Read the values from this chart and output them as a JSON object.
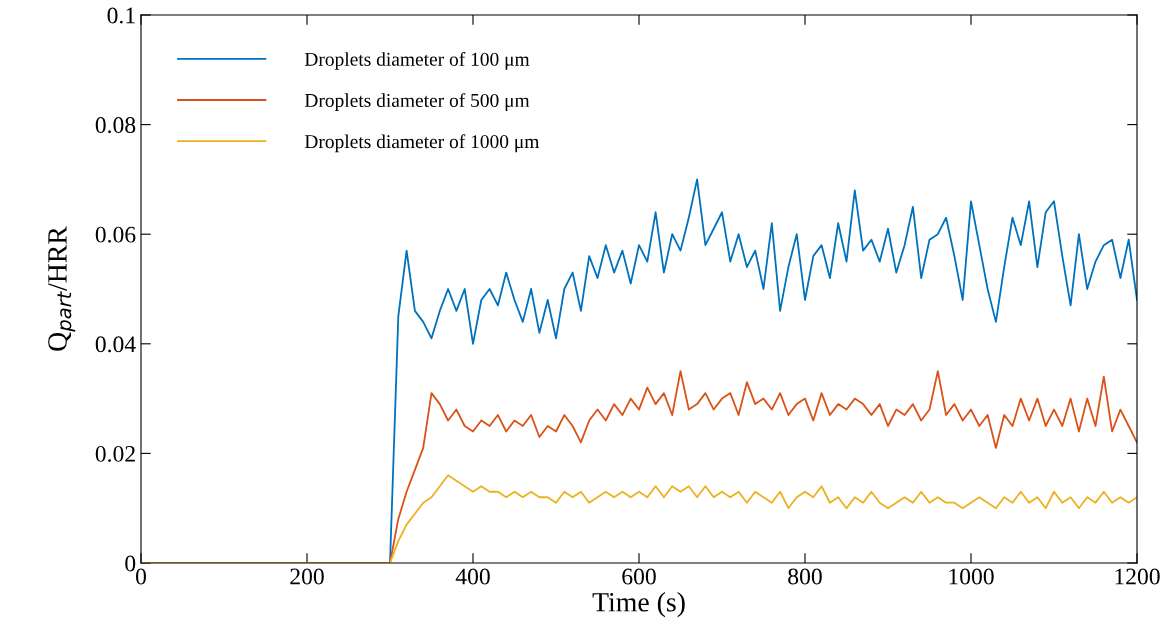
{
  "chart_data": {
    "type": "line",
    "xlabel": "Time (s)",
    "ylabel": "Q$_{part}$/HRR",
    "x": [
      0,
      300,
      310,
      320,
      330,
      340,
      350,
      360,
      370,
      380,
      390,
      400,
      410,
      420,
      430,
      440,
      450,
      460,
      470,
      480,
      490,
      500,
      510,
      520,
      530,
      540,
      550,
      560,
      570,
      580,
      590,
      600,
      610,
      620,
      630,
      640,
      650,
      660,
      670,
      680,
      690,
      700,
      710,
      720,
      730,
      740,
      750,
      760,
      770,
      780,
      790,
      800,
      810,
      820,
      830,
      840,
      850,
      860,
      870,
      880,
      890,
      900,
      910,
      920,
      930,
      940,
      950,
      960,
      970,
      980,
      990,
      1000,
      1010,
      1020,
      1030,
      1040,
      1050,
      1060,
      1070,
      1080,
      1090,
      1100,
      1110,
      1120,
      1130,
      1140,
      1150,
      1160,
      1170,
      1180,
      1190,
      1200
    ],
    "series": [
      {
        "name": "Droplets diameter of 100 μm",
        "color": "#0072bd",
        "values": [
          0,
          0,
          0.045,
          0.057,
          0.046,
          0.044,
          0.041,
          0.046,
          0.05,
          0.046,
          0.05,
          0.04,
          0.048,
          0.05,
          0.047,
          0.053,
          0.048,
          0.044,
          0.05,
          0.042,
          0.048,
          0.041,
          0.05,
          0.053,
          0.046,
          0.056,
          0.052,
          0.058,
          0.053,
          0.057,
          0.051,
          0.058,
          0.055,
          0.064,
          0.053,
          0.06,
          0.057,
          0.063,
          0.07,
          0.058,
          0.061,
          0.064,
          0.055,
          0.06,
          0.054,
          0.057,
          0.05,
          0.062,
          0.046,
          0.054,
          0.06,
          0.048,
          0.056,
          0.058,
          0.052,
          0.062,
          0.055,
          0.068,
          0.057,
          0.059,
          0.055,
          0.061,
          0.053,
          0.058,
          0.065,
          0.052,
          0.059,
          0.06,
          0.063,
          0.056,
          0.048,
          0.066,
          0.058,
          0.05,
          0.044,
          0.054,
          0.063,
          0.058,
          0.066,
          0.054,
          0.064,
          0.066,
          0.056,
          0.047,
          0.06,
          0.05,
          0.055,
          0.058,
          0.059,
          0.052,
          0.059,
          0.048
        ]
      },
      {
        "name": "Droplets diameter of 500 μm",
        "color": "#d95319",
        "values": [
          0,
          0,
          0.008,
          0.013,
          0.017,
          0.021,
          0.031,
          0.029,
          0.026,
          0.028,
          0.025,
          0.024,
          0.026,
          0.025,
          0.027,
          0.024,
          0.026,
          0.025,
          0.027,
          0.023,
          0.025,
          0.024,
          0.027,
          0.025,
          0.022,
          0.026,
          0.028,
          0.026,
          0.029,
          0.027,
          0.03,
          0.028,
          0.032,
          0.029,
          0.031,
          0.027,
          0.035,
          0.028,
          0.029,
          0.031,
          0.028,
          0.03,
          0.031,
          0.027,
          0.033,
          0.029,
          0.03,
          0.028,
          0.031,
          0.027,
          0.029,
          0.03,
          0.026,
          0.031,
          0.027,
          0.029,
          0.028,
          0.03,
          0.029,
          0.027,
          0.029,
          0.025,
          0.028,
          0.027,
          0.029,
          0.026,
          0.028,
          0.035,
          0.027,
          0.029,
          0.026,
          0.028,
          0.025,
          0.027,
          0.021,
          0.027,
          0.025,
          0.03,
          0.026,
          0.03,
          0.025,
          0.028,
          0.025,
          0.03,
          0.024,
          0.03,
          0.025,
          0.034,
          0.024,
          0.028,
          0.025,
          0.022
        ]
      },
      {
        "name": "Droplets diameter of 1000 μm",
        "color": "#edb120",
        "values": [
          0,
          0,
          0.004,
          0.007,
          0.009,
          0.011,
          0.012,
          0.014,
          0.016,
          0.015,
          0.014,
          0.013,
          0.014,
          0.013,
          0.013,
          0.012,
          0.013,
          0.012,
          0.013,
          0.012,
          0.012,
          0.011,
          0.013,
          0.012,
          0.013,
          0.011,
          0.012,
          0.013,
          0.012,
          0.013,
          0.012,
          0.013,
          0.012,
          0.014,
          0.012,
          0.014,
          0.013,
          0.014,
          0.012,
          0.014,
          0.012,
          0.013,
          0.012,
          0.013,
          0.011,
          0.013,
          0.012,
          0.011,
          0.013,
          0.01,
          0.012,
          0.013,
          0.012,
          0.014,
          0.011,
          0.012,
          0.01,
          0.012,
          0.011,
          0.013,
          0.011,
          0.01,
          0.011,
          0.012,
          0.011,
          0.013,
          0.011,
          0.012,
          0.011,
          0.011,
          0.01,
          0.011,
          0.012,
          0.011,
          0.01,
          0.012,
          0.011,
          0.013,
          0.011,
          0.012,
          0.01,
          0.013,
          0.011,
          0.012,
          0.01,
          0.012,
          0.011,
          0.013,
          0.011,
          0.012,
          0.011,
          0.012
        ]
      }
    ],
    "xlim": [
      0,
      1200
    ],
    "xticks": [
      0,
      200,
      400,
      600,
      800,
      1000,
      1200
    ],
    "ylim": [
      0,
      0.1
    ],
    "yticks": [
      0,
      0.02,
      0.04,
      0.06,
      0.08,
      0.1
    ],
    "grid": false,
    "legend": "top left",
    "marker": "none",
    "line_style": "solid"
  }
}
